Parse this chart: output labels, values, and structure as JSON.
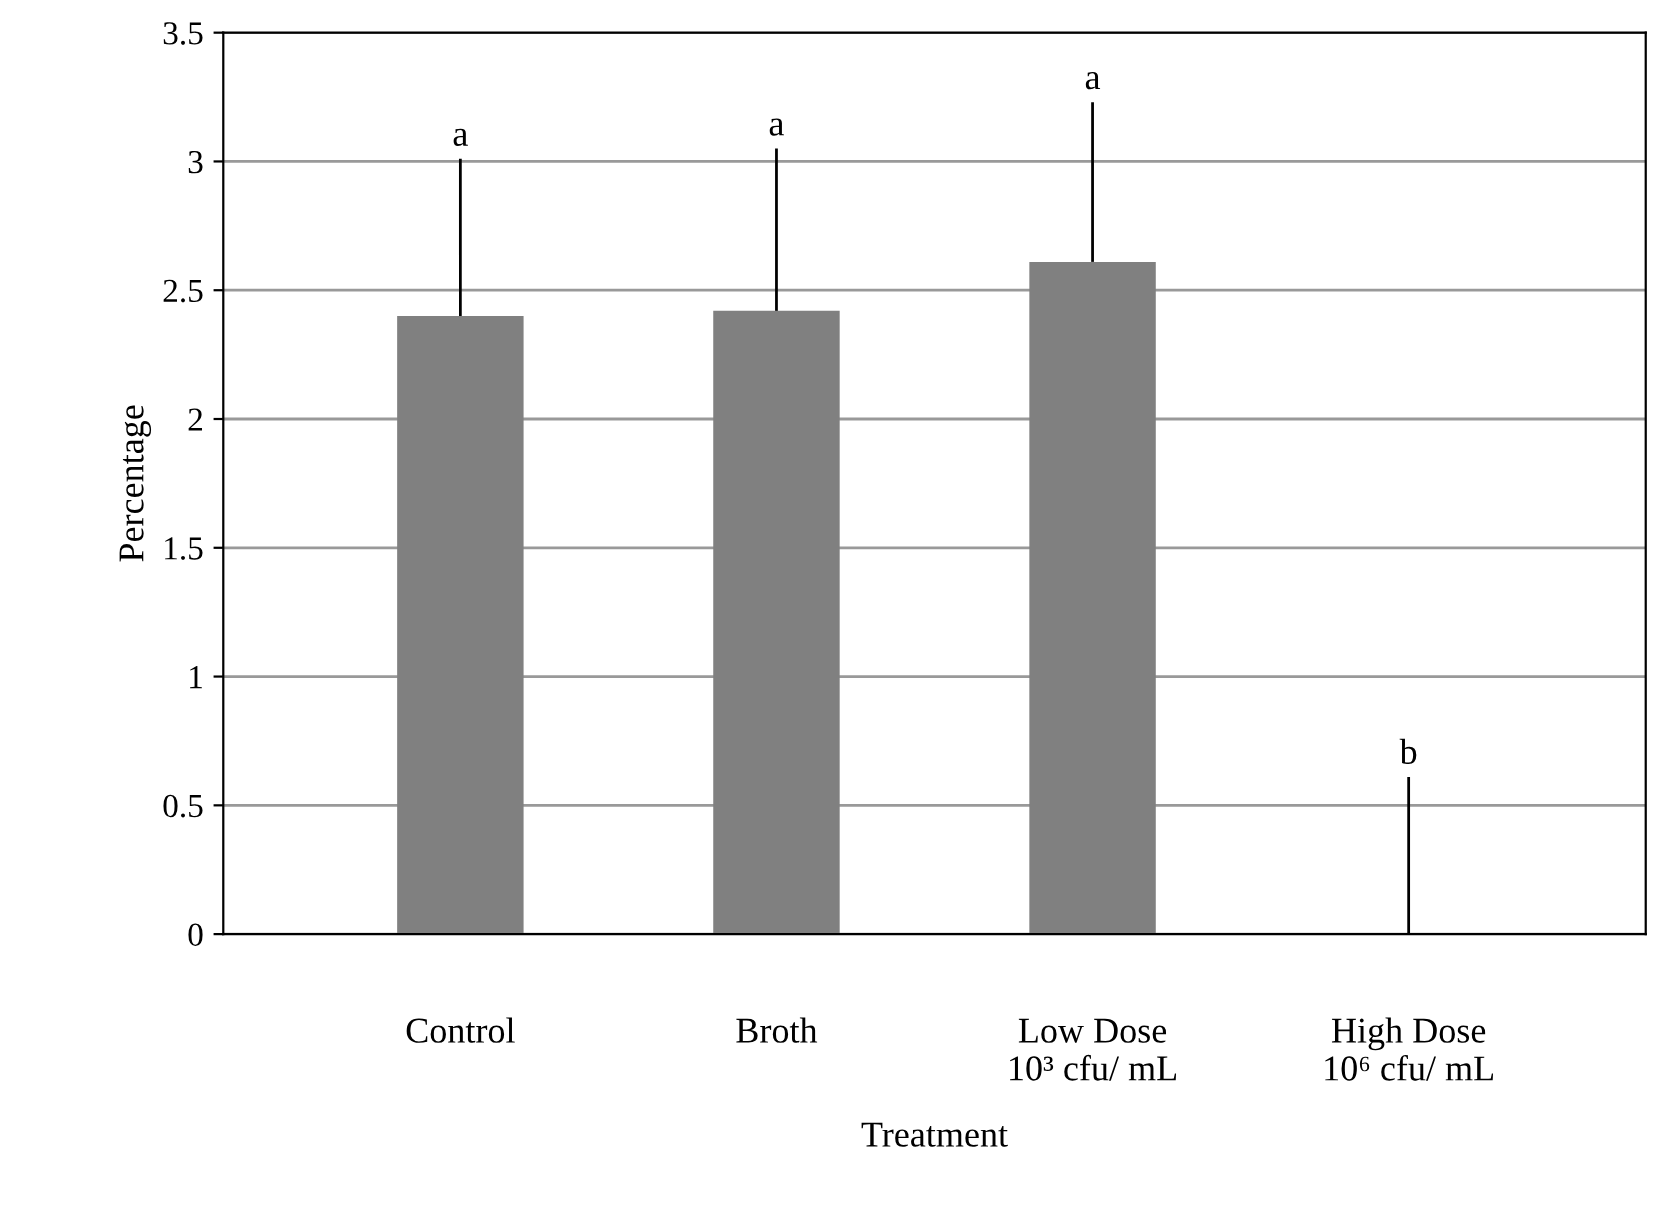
{
  "chart_data": {
    "type": "bar",
    "xlabel": "Treatment",
    "ylabel": "Percentage",
    "categories": [
      "Control",
      "Broth",
      "Low Dose\n10³ cfu/ mL",
      "High Dose\n10⁶ cfu/ mL"
    ],
    "values": [
      2.4,
      2.42,
      2.61,
      0
    ],
    "errors": [
      [
        2.4,
        3.01
      ],
      [
        2.42,
        3.05
      ],
      [
        2.61,
        3.23
      ],
      [
        0,
        0.61
      ]
    ],
    "color": "#808080",
    "ylim": [
      0,
      3.5
    ],
    "yticks": [
      0,
      0.5,
      1,
      1.5,
      2,
      2.5,
      3,
      3.5
    ],
    "grid": "y",
    "annotations": [
      "a",
      "a",
      "a",
      "b"
    ]
  }
}
